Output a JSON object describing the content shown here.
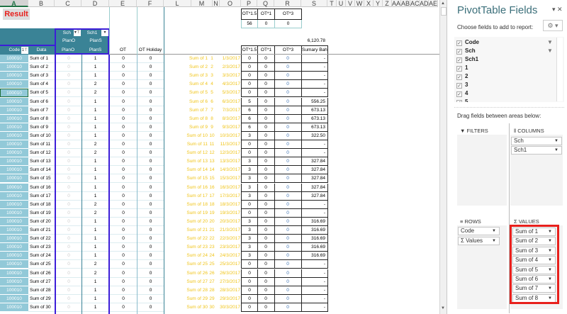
{
  "sheet": {
    "columns": [
      "A",
      "B",
      "C",
      "D",
      "E",
      "F",
      "L",
      "M",
      "N",
      "O",
      "P",
      "Q",
      "R",
      "S",
      "T",
      "U",
      "V",
      "W",
      "X",
      "Y",
      "Z",
      "AA",
      "AB",
      "AC",
      "AD",
      "AE"
    ],
    "selected_column": "A",
    "title_cell": "Result",
    "top_table": {
      "headers": [
        "OT*1.5",
        "OT*1",
        "OT*3"
      ],
      "values": [
        "56",
        "0",
        "0"
      ]
    },
    "total": "6,120.78",
    "pivot": {
      "col_field_1": "Sch",
      "col_field_2": "Sch1",
      "group_1": "PlanO",
      "group_2": "PlanS",
      "row_field": "Code",
      "data_label": "Data",
      "sub_1": "PlanO",
      "sub_2": "PlanS"
    },
    "headers_ef": [
      "OT",
      "OT Holiday"
    ],
    "headers_pqrs": [
      "OT*1.5",
      "OT*1",
      "OT*3",
      "Sumary Baht"
    ],
    "code": "100010",
    "planO": "0",
    "planS": [
      1,
      1,
      1,
      2,
      2,
      1,
      1,
      1,
      1,
      1,
      2,
      2,
      1,
      1,
      1,
      1,
      1,
      2,
      2,
      1,
      1,
      1,
      1,
      1,
      2,
      2,
      1,
      1,
      1,
      1
    ],
    "ot": "0",
    "ot_holiday": "0",
    "ot15": [
      0,
      0,
      0,
      0,
      0,
      5,
      6,
      6,
      6,
      3,
      0,
      0,
      3,
      3,
      3,
      3,
      3,
      0,
      0,
      3,
      3,
      3,
      3,
      3,
      0,
      0,
      0,
      0,
      0,
      0
    ],
    "ot1": "0",
    "ot3": "0",
    "baht": [
      "-",
      "-",
      "-",
      "-",
      "-",
      "556.25",
      "673.13",
      "673.13",
      "673.13",
      "322.50",
      "-",
      "-",
      "327.84",
      "327.84",
      "327.84",
      "327.84",
      "327.84",
      "-",
      "-",
      "316.69",
      "316.69",
      "316.69",
      "316.69",
      "316.69",
      "-",
      "-",
      "-",
      "-",
      "-",
      "-"
    ],
    "date_suffix": "/3/2017",
    "sum_prefix": "Sum of "
  },
  "panel": {
    "title": "PivotTable Fields",
    "subtitle": "Choose fields to add to report:",
    "fields": [
      {
        "label": "Code",
        "filter": true
      },
      {
        "label": "Sch",
        "filter": true
      },
      {
        "label": "Sch1"
      },
      {
        "label": "1"
      },
      {
        "label": "2"
      },
      {
        "label": "3"
      },
      {
        "label": "4"
      },
      {
        "label": "5"
      }
    ],
    "drag_hint": "Drag fields between areas below:",
    "filters_label": "FILTERS",
    "columns_label": "COLUMNS",
    "rows_label": "ROWS",
    "values_label": "VALUES",
    "columns": [
      "Sch",
      "Sch1"
    ],
    "rows": [
      "Code",
      "Σ  Values"
    ],
    "values": [
      "Sum of 1",
      "Sum of 2",
      "Sum of 3",
      "Sum of 4",
      "Sum of 5",
      "Sum of 6",
      "Sum of 7",
      "Sum of 8"
    ],
    "highlight_color": "#e8201c"
  }
}
